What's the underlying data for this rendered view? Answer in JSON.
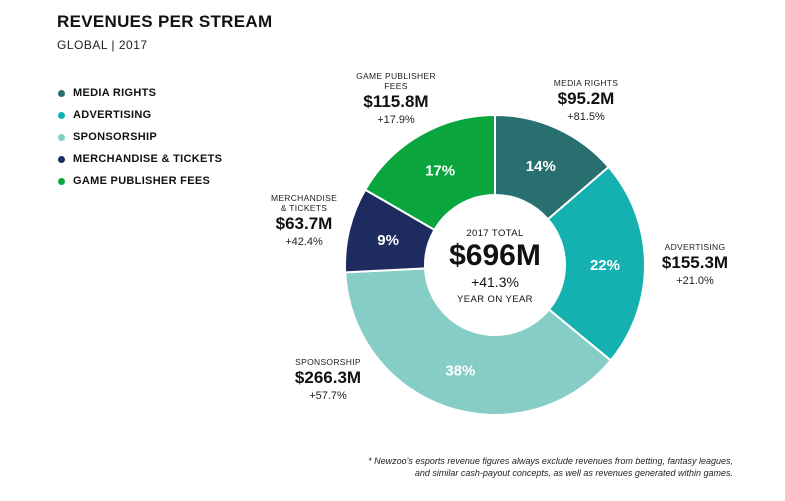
{
  "chart_data": {
    "type": "pie",
    "title": "REVENUES PER STREAM",
    "subtitle": "GLOBAL | 2017",
    "center": {
      "label": "2017 TOTAL",
      "value": "$696M",
      "change": "+41.3%",
      "sublabel": "YEAR ON YEAR"
    },
    "slices": [
      {
        "name": "MEDIA RIGHTS",
        "label_lines": [
          "MEDIA RIGHTS"
        ],
        "percent": 14,
        "percent_label": "14%",
        "value": 95.2,
        "value_label": "$95.2M",
        "change_label": "+81.5%",
        "color": "#2a6f70"
      },
      {
        "name": "ADVERTISING",
        "label_lines": [
          "ADVERTISING"
        ],
        "percent": 22,
        "percent_label": "22%",
        "value": 155.3,
        "value_label": "$155.3M",
        "change_label": "+21.0%",
        "color": "#14b1b0"
      },
      {
        "name": "SPONSORSHIP",
        "label_lines": [
          "SPONSORSHIP"
        ],
        "percent": 38,
        "percent_label": "38%",
        "value": 266.3,
        "value_label": "$266.3M",
        "change_label": "+57.7%",
        "color": "#86cdc7"
      },
      {
        "name": "MERCHANDISE & TICKETS",
        "label_lines": [
          "MERCHANDISE",
          "& TICKETS"
        ],
        "percent": 9,
        "percent_label": "9%",
        "value": 63.7,
        "value_label": "$63.7M",
        "change_label": "+42.4%",
        "color": "#1d2b5e"
      },
      {
        "name": "GAME PUBLISHER FEES",
        "label_lines": [
          "GAME PUBLISHER",
          "FEES"
        ],
        "percent": 17,
        "percent_label": "17%",
        "value": 115.8,
        "value_label": "$115.8M",
        "change_label": "+17.9%",
        "color": "#0aa63d"
      }
    ]
  },
  "footnote": {
    "line1": "* Newzoo's esports revenue figures always exclude revenues from betting, fantasy leagues,",
    "line2": "and similar cash-payout concepts, as well as revenues generated within games."
  }
}
